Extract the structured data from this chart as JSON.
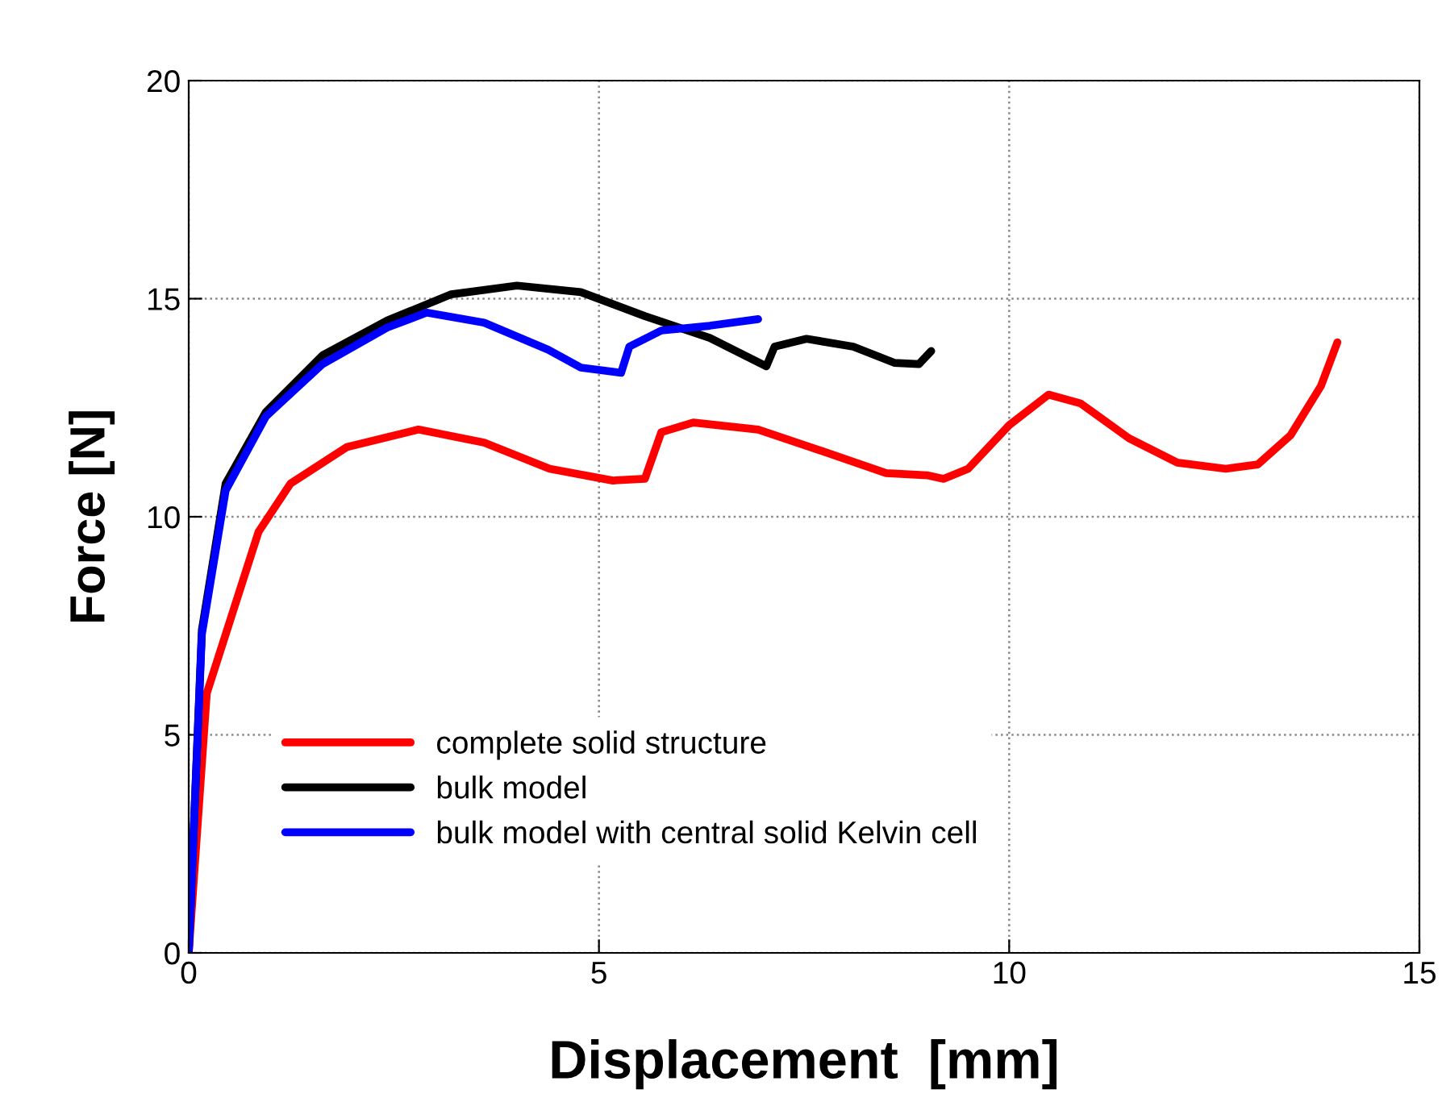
{
  "chart_data": {
    "type": "line",
    "xlabel": "Displacement  [mm]",
    "ylabel": "Force [N]",
    "xlim": [
      0,
      15
    ],
    "ylim": [
      0,
      20
    ],
    "xticks": [
      0,
      5,
      10,
      15
    ],
    "yticks": [
      0,
      5,
      10,
      15,
      20
    ],
    "grid": true,
    "legend": "bottom left",
    "line_style": "solid",
    "marker": "none",
    "series": [
      {
        "name": "complete solid structure",
        "color": "#ff0000",
        "x": [
          0,
          0.22,
          0.85,
          1.24,
          1.93,
          2.8,
          3.6,
          4.4,
          5.17,
          5.56,
          5.76,
          6.15,
          6.94,
          7.73,
          8.5,
          9.0,
          9.2,
          9.5,
          10.0,
          10.48,
          10.87,
          11.46,
          12.05,
          12.64,
          13.03,
          13.43,
          13.8,
          14.0
        ],
        "values": [
          0,
          5.95,
          9.65,
          10.76,
          11.6,
          12.0,
          11.7,
          11.1,
          10.83,
          10.87,
          11.94,
          12.16,
          12.0,
          11.5,
          11.0,
          10.95,
          10.87,
          11.1,
          12.1,
          12.8,
          12.6,
          11.8,
          11.24,
          11.1,
          11.2,
          11.87,
          13.0,
          14.0
        ]
      },
      {
        "name": "bulk model",
        "color": "#000000",
        "x": [
          0,
          0.16,
          0.45,
          0.94,
          1.63,
          2.42,
          3.2,
          4.0,
          4.78,
          5.56,
          6.35,
          7.04,
          7.14,
          7.53,
          8.1,
          8.6,
          8.9,
          9.05
        ],
        "values": [
          0,
          7.4,
          10.76,
          12.4,
          13.7,
          14.5,
          15.1,
          15.3,
          15.15,
          14.6,
          14.1,
          13.45,
          13.9,
          14.08,
          13.9,
          13.53,
          13.5,
          13.8
        ]
      },
      {
        "name": "bulk model with central solid Kelvin cell",
        "color": "#0000ff",
        "x": [
          0,
          0.16,
          0.45,
          0.94,
          1.63,
          2.42,
          2.9,
          3.6,
          4.38,
          4.78,
          5.27,
          5.37,
          5.76,
          6.35,
          6.94
        ],
        "values": [
          0,
          7.3,
          10.6,
          12.3,
          13.5,
          14.34,
          14.68,
          14.45,
          13.83,
          13.42,
          13.3,
          13.9,
          14.27,
          14.38,
          14.53
        ]
      }
    ]
  }
}
